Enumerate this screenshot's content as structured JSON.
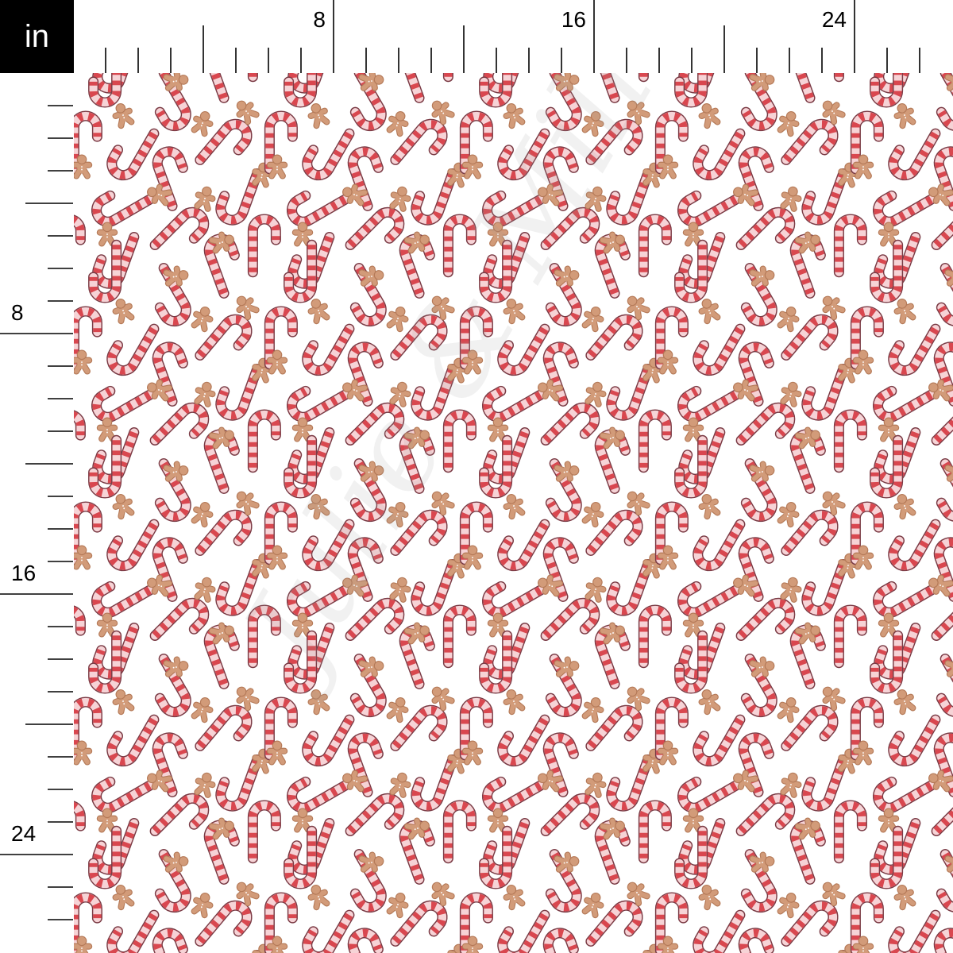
{
  "ruler": {
    "unit": "in",
    "top_labels": [
      "8",
      "16",
      "24"
    ],
    "left_labels": [
      "8",
      "16",
      "24"
    ],
    "label_interval_in": 8,
    "mid_tick_interval_in": 4
  },
  "fabric": {
    "motifs": [
      "candy-cane",
      "gingerbread-man"
    ],
    "watermark": "Julie & Milla",
    "colors": {
      "background": "#ffffff",
      "cane_light": "#f6d3d6",
      "cane_stripe": "#d9474f",
      "cane_outline": "#7a3b45",
      "gingerbread": "#d29b79",
      "gingerbread_outline": "#b57a58",
      "ruler": "#000000"
    }
  }
}
